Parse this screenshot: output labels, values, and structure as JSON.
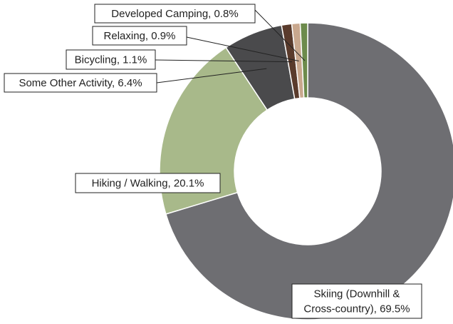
{
  "chart_data": {
    "type": "donut",
    "labels": [
      [
        "Skiing (Downhill &",
        "Cross-country), 69.5%"
      ],
      [
        "Hiking / Walking, 20.1%"
      ],
      [
        "Some Other Activity, 6.4%"
      ],
      [
        "Bicycling, 1.1%"
      ],
      [
        "Relaxing, 0.9%"
      ],
      [
        "Developed Camping, 0.8%"
      ]
    ],
    "values": [
      69.5,
      20.1,
      6.4,
      1.1,
      0.9,
      0.8
    ],
    "colors": [
      "#6e6e72",
      "#a8b98a",
      "#4a4a4c",
      "#5a3b2c",
      "#c9a88e",
      "#6d8b4c"
    ]
  }
}
